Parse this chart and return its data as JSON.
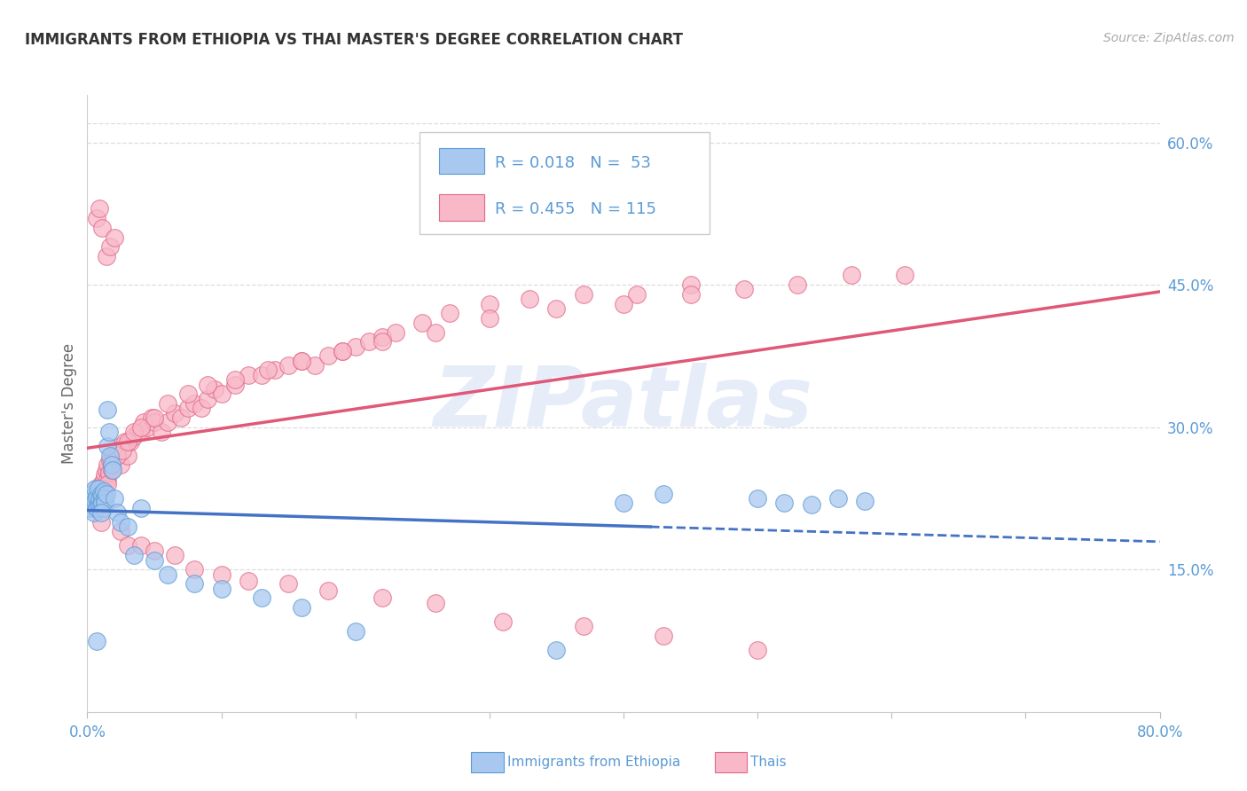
{
  "title": "IMMIGRANTS FROM ETHIOPIA VS THAI MASTER'S DEGREE CORRELATION CHART",
  "source": "Source: ZipAtlas.com",
  "ylabel": "Master's Degree",
  "xlim": [
    0.0,
    0.8
  ],
  "ylim": [
    0.0,
    0.65
  ],
  "legend_blue_r": "R = 0.018",
  "legend_blue_n": "N =  53",
  "legend_pink_r": "R = 0.455",
  "legend_pink_n": "N = 115",
  "watermark": "ZIPatlas",
  "blue_fill": "#A8C8F0",
  "blue_edge": "#5B9BD5",
  "pink_fill": "#F8B8C8",
  "pink_edge": "#E06888",
  "blue_line_color": "#4472C4",
  "pink_line_color": "#E05878",
  "title_color": "#333333",
  "axis_label_color": "#5B9BD5",
  "grid_color": "#DDDDDD",
  "blue_scatter_x": [
    0.002,
    0.003,
    0.003,
    0.004,
    0.004,
    0.005,
    0.005,
    0.006,
    0.006,
    0.007,
    0.007,
    0.008,
    0.008,
    0.009,
    0.009,
    0.01,
    0.01,
    0.011,
    0.011,
    0.012,
    0.012,
    0.013,
    0.013,
    0.014,
    0.015,
    0.015,
    0.016,
    0.017,
    0.018,
    0.019,
    0.02,
    0.022,
    0.025,
    0.03,
    0.035,
    0.05,
    0.06,
    0.08,
    0.1,
    0.13,
    0.16,
    0.2,
    0.35,
    0.4,
    0.43,
    0.5,
    0.52,
    0.54,
    0.56,
    0.58,
    0.007,
    0.01,
    0.04
  ],
  "blue_scatter_y": [
    0.225,
    0.22,
    0.215,
    0.23,
    0.218,
    0.228,
    0.21,
    0.222,
    0.235,
    0.226,
    0.215,
    0.22,
    0.235,
    0.218,
    0.225,
    0.23,
    0.219,
    0.228,
    0.22,
    0.232,
    0.215,
    0.225,
    0.22,
    0.23,
    0.28,
    0.318,
    0.295,
    0.27,
    0.26,
    0.255,
    0.225,
    0.21,
    0.2,
    0.195,
    0.165,
    0.16,
    0.145,
    0.135,
    0.13,
    0.12,
    0.11,
    0.085,
    0.065,
    0.22,
    0.23,
    0.225,
    0.22,
    0.218,
    0.225,
    0.222,
    0.075,
    0.21,
    0.215
  ],
  "pink_scatter_x": [
    0.003,
    0.004,
    0.005,
    0.006,
    0.007,
    0.007,
    0.008,
    0.008,
    0.009,
    0.01,
    0.01,
    0.011,
    0.012,
    0.012,
    0.013,
    0.014,
    0.015,
    0.015,
    0.016,
    0.017,
    0.018,
    0.019,
    0.02,
    0.022,
    0.025,
    0.025,
    0.028,
    0.03,
    0.032,
    0.035,
    0.038,
    0.04,
    0.042,
    0.045,
    0.048,
    0.05,
    0.055,
    0.06,
    0.065,
    0.07,
    0.075,
    0.08,
    0.085,
    0.09,
    0.095,
    0.1,
    0.11,
    0.12,
    0.13,
    0.14,
    0.15,
    0.16,
    0.17,
    0.18,
    0.19,
    0.2,
    0.21,
    0.22,
    0.23,
    0.25,
    0.27,
    0.3,
    0.33,
    0.37,
    0.41,
    0.45,
    0.49,
    0.53,
    0.57,
    0.61,
    0.01,
    0.012,
    0.015,
    0.018,
    0.022,
    0.026,
    0.03,
    0.035,
    0.04,
    0.05,
    0.06,
    0.075,
    0.09,
    0.11,
    0.135,
    0.16,
    0.19,
    0.22,
    0.26,
    0.3,
    0.35,
    0.4,
    0.45,
    0.007,
    0.009,
    0.011,
    0.014,
    0.017,
    0.02,
    0.025,
    0.03,
    0.04,
    0.05,
    0.065,
    0.08,
    0.1,
    0.12,
    0.15,
    0.18,
    0.22,
    0.26,
    0.31,
    0.37,
    0.43,
    0.5
  ],
  "pink_scatter_y": [
    0.22,
    0.215,
    0.218,
    0.222,
    0.235,
    0.225,
    0.23,
    0.22,
    0.228,
    0.24,
    0.225,
    0.235,
    0.245,
    0.23,
    0.25,
    0.255,
    0.245,
    0.26,
    0.252,
    0.265,
    0.26,
    0.27,
    0.268,
    0.275,
    0.26,
    0.28,
    0.285,
    0.27,
    0.285,
    0.29,
    0.295,
    0.295,
    0.305,
    0.3,
    0.31,
    0.305,
    0.295,
    0.305,
    0.315,
    0.31,
    0.32,
    0.325,
    0.32,
    0.33,
    0.34,
    0.335,
    0.345,
    0.355,
    0.355,
    0.36,
    0.365,
    0.37,
    0.365,
    0.375,
    0.38,
    0.385,
    0.39,
    0.395,
    0.4,
    0.41,
    0.42,
    0.43,
    0.435,
    0.44,
    0.44,
    0.45,
    0.445,
    0.45,
    0.46,
    0.46,
    0.2,
    0.215,
    0.24,
    0.255,
    0.27,
    0.275,
    0.285,
    0.295,
    0.3,
    0.31,
    0.325,
    0.335,
    0.345,
    0.35,
    0.36,
    0.37,
    0.38,
    0.39,
    0.4,
    0.415,
    0.425,
    0.43,
    0.44,
    0.52,
    0.53,
    0.51,
    0.48,
    0.49,
    0.5,
    0.19,
    0.175,
    0.175,
    0.17,
    0.165,
    0.15,
    0.145,
    0.138,
    0.135,
    0.128,
    0.12,
    0.115,
    0.095,
    0.09,
    0.08,
    0.065
  ]
}
